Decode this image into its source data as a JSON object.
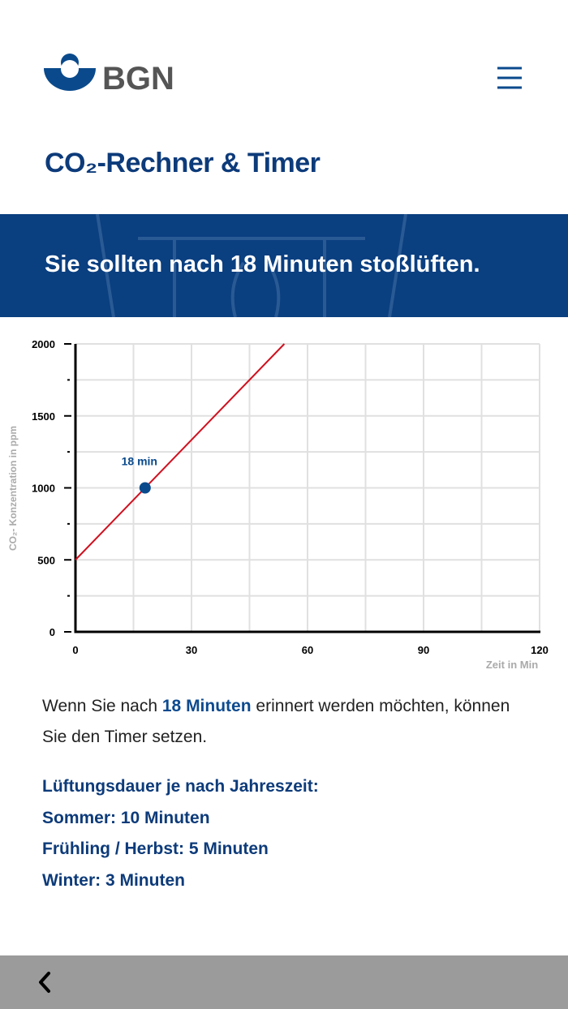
{
  "header": {
    "logo": "BGN",
    "title": "CO₂-Rechner & Timer"
  },
  "banner": "Sie sollten nach 18 Minuten stoßlüften.",
  "chart_data": {
    "type": "line",
    "xlabel": "Zeit in Min",
    "ylabel": "CO₂- Konzentration in ppm",
    "xlim": [
      0,
      120
    ],
    "ylim": [
      0,
      2000
    ],
    "xticks": [
      0,
      30,
      60,
      90,
      120
    ],
    "yticks": [
      0,
      500,
      1000,
      1500,
      2000
    ],
    "xminor": [
      15,
      45,
      75,
      105
    ],
    "yminor": [
      250,
      750,
      1250,
      1750
    ],
    "grid": true,
    "series": [
      {
        "color": "#d0101e",
        "x": [
          0,
          54
        ],
        "values": [
          500,
          2000
        ]
      }
    ],
    "marker": {
      "x": 18,
      "y": 1000,
      "label": "18 min",
      "color": "#0a4a8c"
    }
  },
  "message": {
    "before": "Wenn Sie nach ",
    "highlight": "18 Minuten",
    "after": " erinnert werden möchten, können Sie den Timer setzen."
  },
  "tips": [
    "Lüftungsdauer je nach Jahreszeit:",
    "Sommer: 10 Minuten",
    "Frühling / Herbst: 5 Minuten",
    "Winter: 3 Minuten"
  ]
}
